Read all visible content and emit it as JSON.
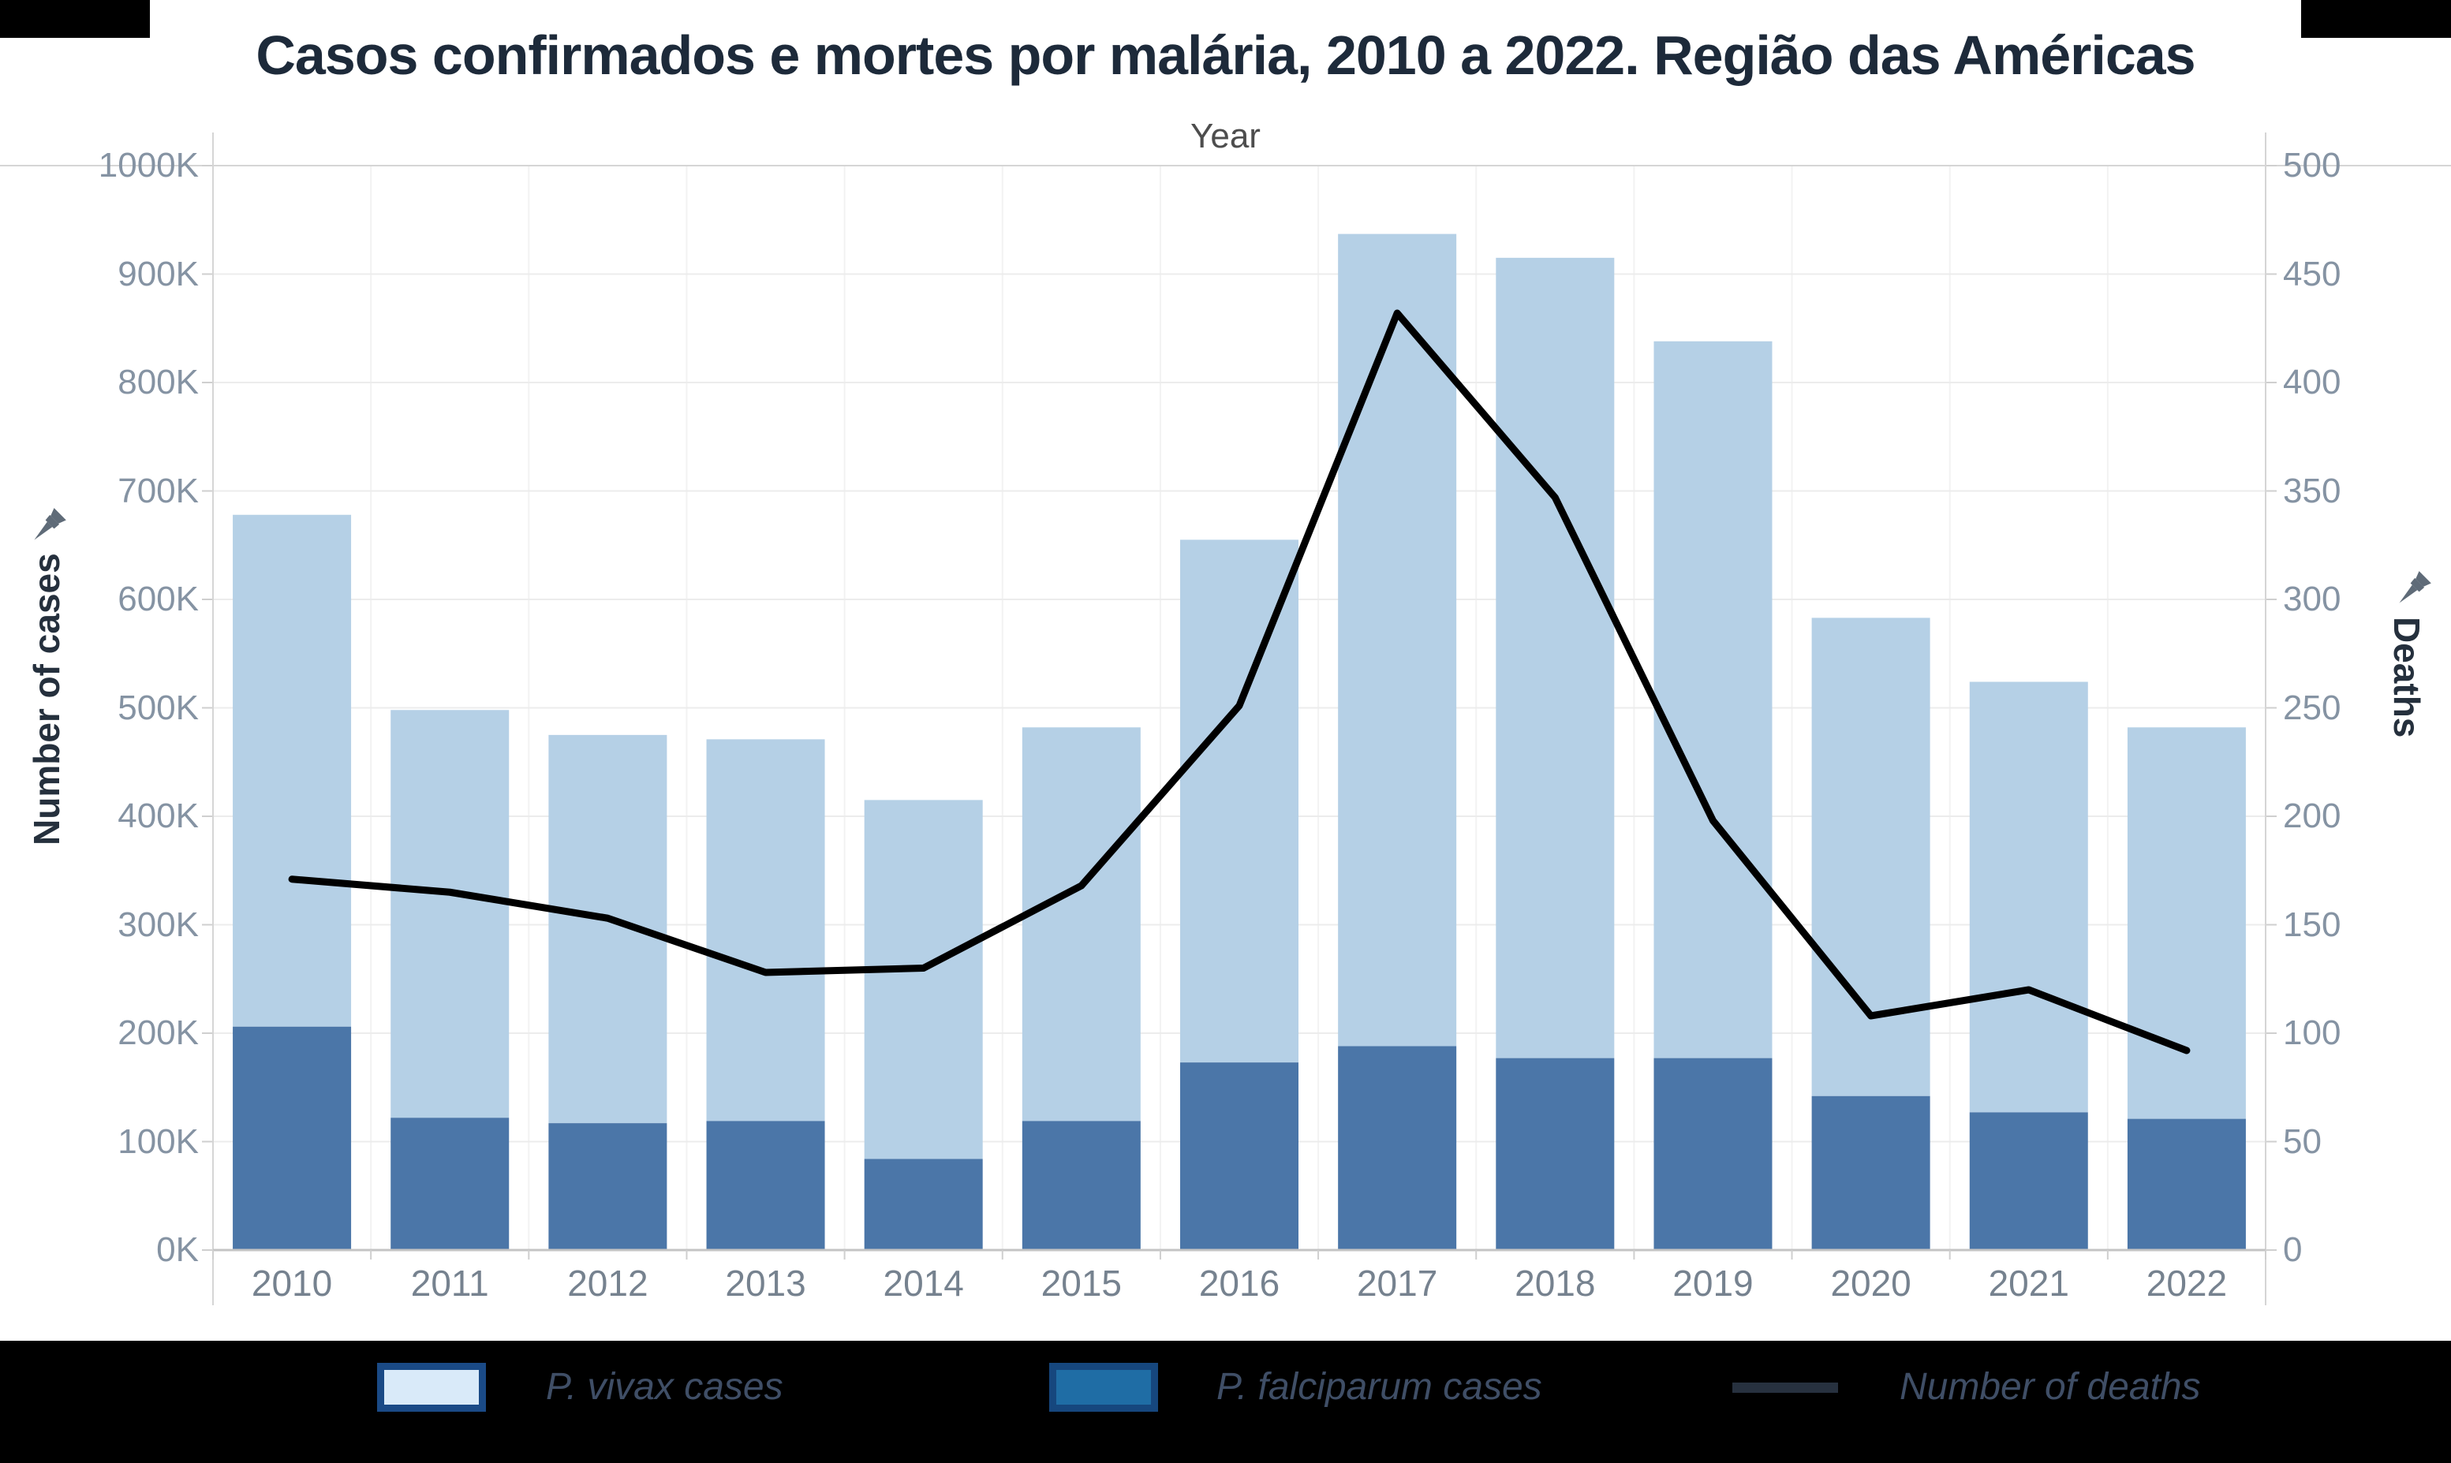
{
  "header": {
    "title": "Casos confirmados e mortes por malária, 2010 a 2022. Região das Américas",
    "top_axis_label": "Year"
  },
  "axes": {
    "left": {
      "title": "Number of cases",
      "ticks": [
        "0K",
        "100K",
        "200K",
        "300K",
        "400K",
        "500K",
        "600K",
        "700K",
        "800K",
        "900K",
        "1000K"
      ]
    },
    "right": {
      "title": "Deaths",
      "ticks": [
        "0",
        "50",
        "100",
        "150",
        "200",
        "250",
        "300",
        "350",
        "400",
        "450",
        "500"
      ]
    },
    "x": {
      "labels": [
        "2010",
        "2011",
        "2012",
        "2013",
        "2014",
        "2015",
        "2016",
        "2017",
        "2018",
        "2019",
        "2020",
        "2021",
        "2022"
      ]
    }
  },
  "legend": {
    "items": [
      {
        "label": "P. vivax cases",
        "swatch_fill": "#d9eaf9",
        "swatch_border": "#1a4a86",
        "kind": "box"
      },
      {
        "label": "P. falciparum cases",
        "swatch_fill": "#1f6da5",
        "swatch_border": "#16477e",
        "kind": "box"
      },
      {
        "label": "Number of deaths",
        "swatch_fill": "#27313f",
        "kind": "line"
      }
    ]
  },
  "colors": {
    "bar_vivax": "#b5d0e6",
    "bar_falciparum": "#4b76a8",
    "deaths_line": "#000000",
    "gridline": "#ececec",
    "axis_line": "#d5d5d5",
    "tick_mark": "#cfcfcf",
    "column_divider": "#f2f2f2",
    "legend_background": "#000000",
    "title_text": "#1d2a3a"
  },
  "chart_data": {
    "type": "combo: stacked-bar + line",
    "title": "Casos confirmados e mortes por malária, 2010 a 2022. Região das Américas",
    "x_title": "Year",
    "categories": [
      "2010",
      "2011",
      "2012",
      "2013",
      "2014",
      "2015",
      "2016",
      "2017",
      "2018",
      "2019",
      "2020",
      "2021",
      "2022"
    ],
    "series": [
      {
        "name": "P. falciparum cases",
        "type": "bar",
        "stack": "cases",
        "axis": "left",
        "color": "#4b76a8",
        "values_thousands": [
          206,
          122,
          117,
          119,
          84,
          119,
          173,
          188,
          177,
          177,
          142,
          127,
          121
        ]
      },
      {
        "name": "P. vivax cases",
        "type": "bar",
        "stack": "cases",
        "axis": "left",
        "color": "#b5d0e6",
        "values_thousands": [
          472,
          376,
          358,
          352,
          331,
          363,
          482,
          749,
          738,
          661,
          441,
          397,
          361
        ]
      },
      {
        "name": "Number of deaths",
        "type": "line",
        "axis": "right",
        "color": "#000000",
        "values": [
          171,
          165,
          153,
          128,
          130,
          168,
          251,
          432,
          347,
          198,
          108,
          120,
          92
        ]
      }
    ],
    "stacked_totals_thousands": [
      678,
      498,
      475,
      471,
      415,
      482,
      655,
      937,
      915,
      838,
      583,
      524,
      482
    ],
    "left_axis": {
      "title": "Number of cases",
      "min_thousands": 0,
      "max_thousands": 1000,
      "tick_step_thousands": 100
    },
    "right_axis": {
      "title": "Deaths",
      "min": 0,
      "max": 500,
      "tick_step": 50
    },
    "grid": true,
    "legend_position": "bottom"
  }
}
